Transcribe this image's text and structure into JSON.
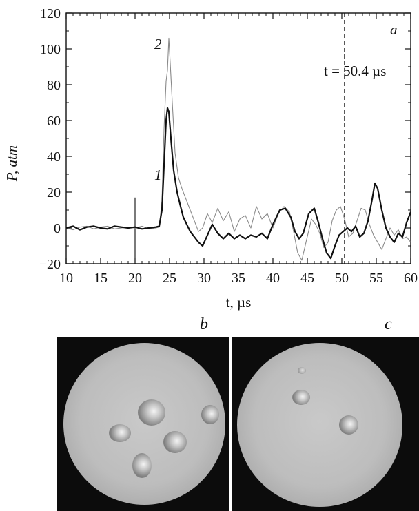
{
  "chart_data": {
    "type": "line",
    "xlabel": "t, µs",
    "ylabel": "P, atm",
    "xlim": [
      10,
      60
    ],
    "ylim": [
      -20,
      120
    ],
    "x_ticks": [
      "10",
      "15",
      "20",
      "25",
      "30",
      "35",
      "40",
      "45",
      "50",
      "55",
      "60"
    ],
    "y_ticks": [
      "−20",
      "0",
      "20",
      "40",
      "60",
      "80",
      "100",
      "120"
    ],
    "panel_label": "a",
    "annotation": "t = 50.4 µs",
    "marker_x": 50.4,
    "series": [
      {
        "name": "1",
        "color": "#111111",
        "points": [
          [
            10,
            0
          ],
          [
            11,
            1
          ],
          [
            12,
            -1
          ],
          [
            13,
            0.5
          ],
          [
            14,
            1
          ],
          [
            15,
            0
          ],
          [
            16,
            -0.5
          ],
          [
            17,
            1
          ],
          [
            18,
            0.5
          ],
          [
            19,
            0
          ],
          [
            20,
            0.5
          ],
          [
            21,
            -0.5
          ],
          [
            22,
            0
          ],
          [
            23,
            0.5
          ],
          [
            23.5,
            1
          ],
          [
            23.9,
            10
          ],
          [
            24.2,
            35
          ],
          [
            24.5,
            60
          ],
          [
            24.7,
            67
          ],
          [
            24.9,
            65
          ],
          [
            25.2,
            50
          ],
          [
            25.6,
            32
          ],
          [
            26.1,
            20
          ],
          [
            26.6,
            12
          ],
          [
            27,
            6
          ],
          [
            27.5,
            2
          ],
          [
            28,
            -2
          ],
          [
            28.6,
            -5
          ],
          [
            29.2,
            -8
          ],
          [
            29.8,
            -10
          ],
          [
            30.5,
            -4
          ],
          [
            31.2,
            2
          ],
          [
            32,
            -3
          ],
          [
            32.8,
            -6
          ],
          [
            33.6,
            -3
          ],
          [
            34.4,
            -6
          ],
          [
            35.2,
            -4
          ],
          [
            36,
            -6
          ],
          [
            36.8,
            -4
          ],
          [
            37.6,
            -5
          ],
          [
            38.4,
            -3
          ],
          [
            39.2,
            -6
          ],
          [
            40,
            2
          ],
          [
            41,
            10
          ],
          [
            41.8,
            11
          ],
          [
            42.6,
            6
          ],
          [
            43.2,
            -2
          ],
          [
            43.8,
            -6
          ],
          [
            44.4,
            -3
          ],
          [
            45.2,
            8
          ],
          [
            46,
            11
          ],
          [
            46.6,
            3
          ],
          [
            47.2,
            -6
          ],
          [
            47.8,
            -14
          ],
          [
            48.4,
            -17
          ],
          [
            49,
            -10
          ],
          [
            49.6,
            -4
          ],
          [
            50.2,
            -2
          ],
          [
            50.8,
            0
          ],
          [
            51.4,
            -2
          ],
          [
            52,
            1
          ],
          [
            52.6,
            -5
          ],
          [
            53.2,
            -3
          ],
          [
            53.8,
            4
          ],
          [
            54.4,
            16
          ],
          [
            54.8,
            25
          ],
          [
            55.2,
            22
          ],
          [
            55.8,
            10
          ],
          [
            56.4,
            0
          ],
          [
            57,
            -5
          ],
          [
            57.6,
            -8
          ],
          [
            58.2,
            -3
          ],
          [
            58.8,
            -5
          ],
          [
            59.4,
            3
          ],
          [
            60,
            9
          ]
        ]
      },
      {
        "name": "2",
        "color": "#8a8a8a",
        "points": [
          [
            10,
            0
          ],
          [
            11,
            -1
          ],
          [
            12,
            0.5
          ],
          [
            13,
            1
          ],
          [
            14,
            -0.5
          ],
          [
            15,
            0.5
          ],
          [
            16,
            1
          ],
          [
            17,
            -0.5
          ],
          [
            18,
            0
          ],
          [
            19,
            0.5
          ],
          [
            20,
            0
          ],
          [
            21,
            1
          ],
          [
            22,
            -0.5
          ],
          [
            23,
            0
          ],
          [
            23.5,
            0.5
          ],
          [
            23.9,
            15
          ],
          [
            24.2,
            55
          ],
          [
            24.5,
            82
          ],
          [
            24.7,
            88
          ],
          [
            24.9,
            106
          ],
          [
            25.1,
            92
          ],
          [
            25.4,
            70
          ],
          [
            25.8,
            42
          ],
          [
            26.3,
            28
          ],
          [
            26.8,
            22
          ],
          [
            27.4,
            16
          ],
          [
            28,
            10
          ],
          [
            28.6,
            4
          ],
          [
            29.2,
            -2
          ],
          [
            29.8,
            0
          ],
          [
            30.5,
            8
          ],
          [
            31.2,
            3
          ],
          [
            32,
            11
          ],
          [
            32.8,
            4
          ],
          [
            33.6,
            9
          ],
          [
            34.4,
            -2
          ],
          [
            35.2,
            5
          ],
          [
            36,
            7
          ],
          [
            36.8,
            0
          ],
          [
            37.6,
            12
          ],
          [
            38.4,
            5
          ],
          [
            39.2,
            8
          ],
          [
            40,
            0
          ],
          [
            40.8,
            8
          ],
          [
            41.6,
            12
          ],
          [
            42.4,
            9
          ],
          [
            43,
            -2
          ],
          [
            43.6,
            -14
          ],
          [
            44.2,
            -18
          ],
          [
            44.8,
            -8
          ],
          [
            45.6,
            5
          ],
          [
            46.2,
            2
          ],
          [
            46.8,
            -3
          ],
          [
            47.4,
            -11
          ],
          [
            48,
            -8
          ],
          [
            48.6,
            4
          ],
          [
            49.2,
            10
          ],
          [
            49.8,
            12
          ],
          [
            50.4,
            5
          ],
          [
            51,
            -5
          ],
          [
            51.6,
            -3
          ],
          [
            52.2,
            4
          ],
          [
            52.8,
            11
          ],
          [
            53.4,
            10
          ],
          [
            54,
            2
          ],
          [
            54.6,
            -4
          ],
          [
            55.2,
            -8
          ],
          [
            55.8,
            -12
          ],
          [
            56.4,
            -6
          ],
          [
            57,
            0
          ],
          [
            57.6,
            -4
          ],
          [
            58.2,
            -1
          ],
          [
            58.8,
            -6
          ],
          [
            59.4,
            -5
          ],
          [
            60,
            -8
          ]
        ]
      }
    ],
    "spike": {
      "x": 20,
      "ymin": -19,
      "ymax": 17
    }
  },
  "photos": {
    "b": {
      "label": "b"
    },
    "c": {
      "label": "c"
    }
  }
}
